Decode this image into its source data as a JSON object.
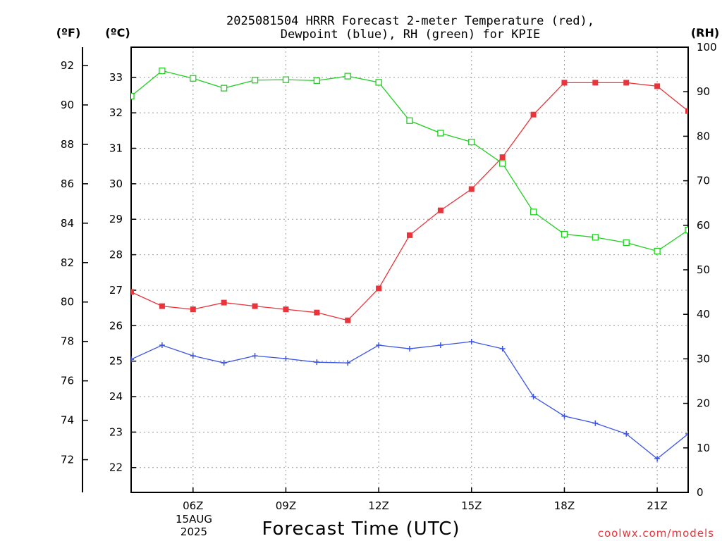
{
  "chart_data": {
    "type": "line",
    "title": [
      "2025081504 HRRR Forecast 2-meter Temperature (red),",
      "Dewpoint (blue), RH (green) for KPIE"
    ],
    "xlabel": "Forecast Time (UTC)",
    "credit": "coolwx.com/models",
    "units": {
      "fahrenheit": "(ºF)",
      "celsius": "(ºC)",
      "rh": "(RH)"
    },
    "date_label": [
      "15AUG",
      "2025"
    ],
    "x_hours": [
      4,
      5,
      6,
      7,
      8,
      9,
      10,
      11,
      12,
      13,
      14,
      15,
      16,
      17,
      18,
      19,
      20,
      21,
      22
    ],
    "x_tick_hours": [
      6,
      9,
      12,
      15,
      18,
      21
    ],
    "x_tick_labels": [
      "06Z",
      "09Z",
      "12Z",
      "15Z",
      "18Z",
      "21Z"
    ],
    "xlim": [
      4,
      22
    ],
    "celsius_axis": {
      "ylim": [
        21.3,
        33.85
      ],
      "ticks": [
        22,
        23,
        24,
        25,
        26,
        27,
        28,
        29,
        30,
        31,
        32,
        33
      ]
    },
    "fahrenheit_axis": {
      "ticks": [
        72,
        74,
        76,
        78,
        80,
        82,
        84,
        86,
        88,
        90,
        92
      ]
    },
    "rh_axis": {
      "ylim": [
        0,
        100
      ],
      "ticks": [
        0,
        10,
        20,
        30,
        40,
        50,
        60,
        70,
        80,
        90,
        100
      ]
    },
    "grid": true,
    "series": [
      {
        "name": "Temperature (red)",
        "axis": "celsius",
        "color": "#e8343a",
        "marker": "filled-square",
        "values": [
          26.95,
          26.55,
          26.46,
          26.65,
          26.55,
          26.46,
          26.37,
          26.15,
          27.05,
          28.55,
          29.25,
          29.85,
          30.75,
          31.95,
          32.85,
          32.85,
          32.85,
          32.75,
          32.05
        ]
      },
      {
        "name": "Dewpoint (blue)",
        "axis": "celsius",
        "color": "#3a54e6",
        "marker": "plus",
        "values": [
          25.05,
          25.45,
          25.15,
          24.95,
          25.15,
          25.07,
          24.97,
          24.95,
          25.45,
          25.35,
          25.45,
          25.55,
          25.35,
          24.0,
          23.45,
          23.25,
          22.95,
          22.25,
          22.95
        ]
      },
      {
        "name": "RH (green)",
        "axis": "rh",
        "color": "#1fd01f",
        "marker": "open-square",
        "values": [
          89,
          94.7,
          93,
          90.8,
          92.6,
          92.7,
          92.5,
          93.5,
          92.1,
          83.5,
          80.7,
          78.7,
          73.9,
          63,
          58,
          57.3,
          56.1,
          54.2,
          58.9
        ]
      }
    ]
  }
}
